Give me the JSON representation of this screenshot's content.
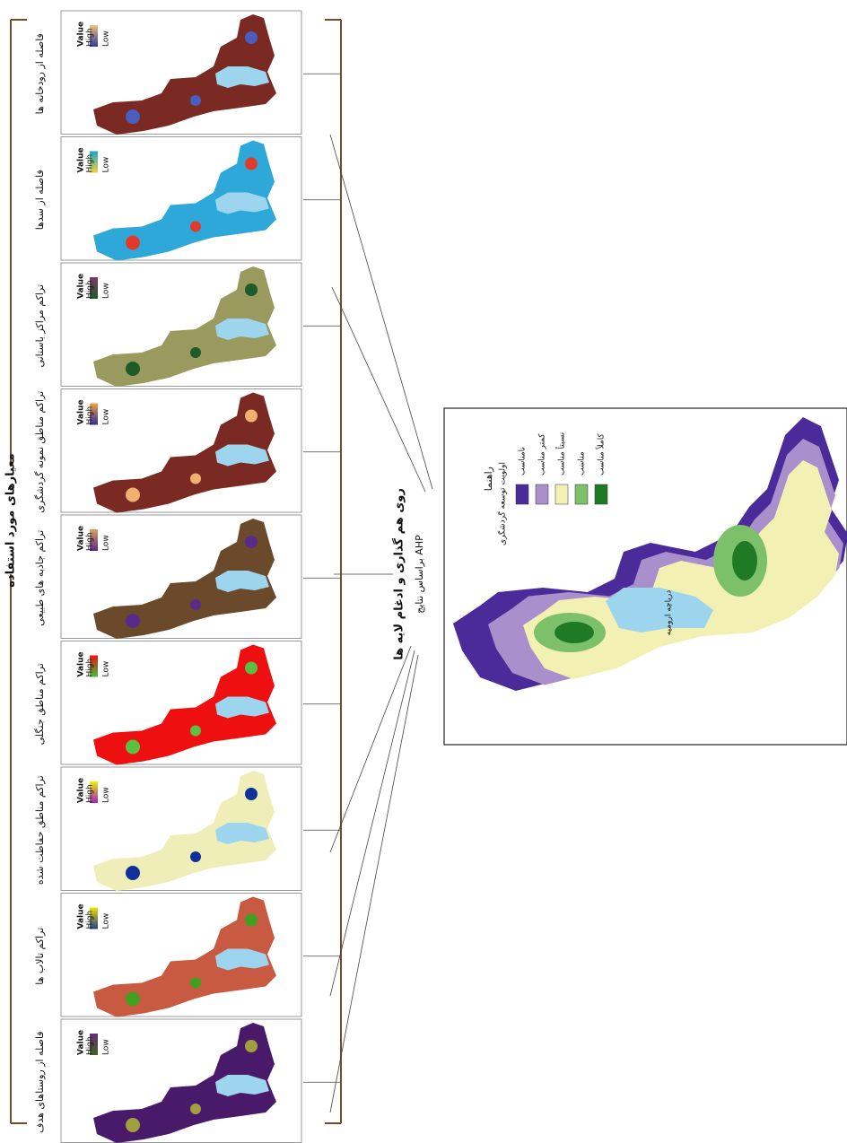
{
  "criteria_label": "معیارهای مورد استفاده",
  "panels": [
    {
      "title": "فاصله از رودخانه ها",
      "legend_title": "Value",
      "high": "High",
      "low": "Low"
    },
    {
      "title": "فاصله از سدها",
      "legend_title": "Value",
      "high": "High",
      "low": "Low"
    },
    {
      "title": "تراکم مراکز باستانی",
      "legend_title": "Value",
      "high": "High",
      "low": "Low"
    },
    {
      "title": "تراکم مناطق نمونه گردشگری",
      "legend_title": "Value",
      "high": "High",
      "low": "Low"
    },
    {
      "title": "تراکم جاذبه های طبیعی",
      "legend_title": "Value",
      "high": "High",
      "low": "Low"
    },
    {
      "title": "تراکم مناطق جنگلی",
      "legend_title": "Value",
      "high": "High",
      "low": "Low"
    },
    {
      "title": "تراکم مناطق حفاظت شده",
      "legend_title": "Value",
      "high": "High",
      "low": "Low"
    },
    {
      "title": "تراکم تالاب ها",
      "legend_title": "Value",
      "high": "High",
      "low": "Low"
    },
    {
      "title": "فاصله از روستاهای هدف",
      "legend_title": "Value",
      "high": "High",
      "low": "Low"
    }
  ],
  "process": {
    "title": "روی هم گذاری و ادغام لایه ها",
    "subtitle": "براساس نتایج AHP"
  },
  "result_map": {
    "legend_title": "راهنما",
    "legend_subtitle": "اولویت توسعه گردشگری",
    "classes": [
      "نامناسب",
      "کمتر مناسب",
      "نسبتاً مناسب",
      "مناسب",
      "کاملاً مناسب"
    ],
    "lake_label": "دریاچه ارومیه"
  }
}
